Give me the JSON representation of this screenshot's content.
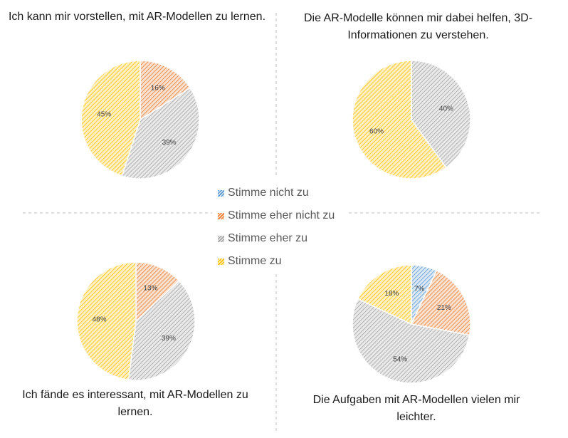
{
  "legend": {
    "items": [
      {
        "label": "Stimme nicht zu",
        "color": "#5B9BD5"
      },
      {
        "label": "Stimme eher nicht zu",
        "color": "#ED7D31"
      },
      {
        "label": "Stimme eher zu",
        "color": "#A5A5A5"
      },
      {
        "label": "Stimme zu",
        "color": "#FFC000"
      }
    ]
  },
  "chart_data": [
    {
      "type": "pie",
      "title": "Ich kann mir vorstellen, mit AR-Modellen zu lernen.",
      "categories": [
        "Stimme nicht zu",
        "Stimme eher nicht zu",
        "Stimme eher zu",
        "Stimme zu"
      ],
      "values": [
        0,
        16,
        39,
        45
      ],
      "labels": [
        "",
        "16%",
        "39%",
        "45%"
      ]
    },
    {
      "type": "pie",
      "title": "Die AR-Modelle können mir dabei helfen, 3D-Informationen zu verstehen.",
      "categories": [
        "Stimme nicht zu",
        "Stimme eher nicht zu",
        "Stimme eher zu",
        "Stimme zu"
      ],
      "values": [
        0,
        0,
        40,
        60
      ],
      "labels": [
        "",
        "",
        "40%",
        "60%"
      ]
    },
    {
      "type": "pie",
      "title": "Ich fände es interessant, mit AR-Modellen zu lernen.",
      "categories": [
        "Stimme nicht zu",
        "Stimme eher nicht zu",
        "Stimme eher zu",
        "Stimme zu"
      ],
      "values": [
        0,
        13,
        39,
        48
      ],
      "labels": [
        "",
        "13%",
        "39%",
        "48%"
      ]
    },
    {
      "type": "pie",
      "title": "Die Aufgaben mit AR-Modellen vielen mir leichter.",
      "categories": [
        "Stimme nicht zu",
        "Stimme eher nicht zu",
        "Stimme eher zu",
        "Stimme zu"
      ],
      "values": [
        7,
        21,
        54,
        18
      ],
      "labels": [
        "7%",
        "21%",
        "54%",
        "18%"
      ]
    }
  ]
}
